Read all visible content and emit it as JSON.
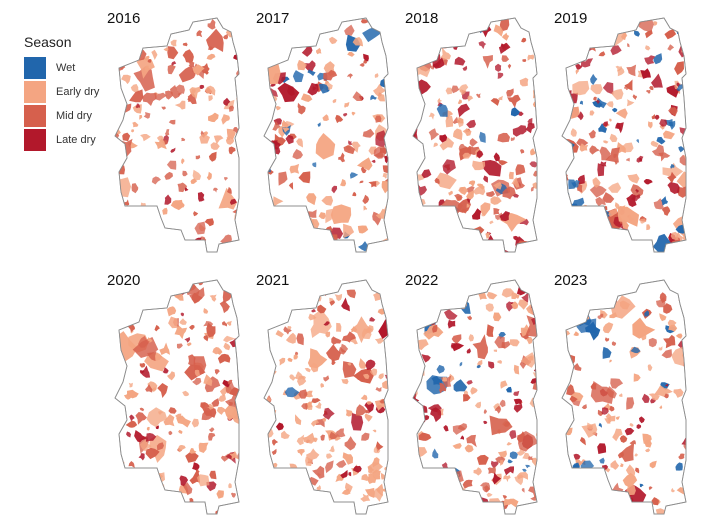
{
  "legend": {
    "title": "Season",
    "items": [
      {
        "label": "Wet",
        "color": "#2166ac"
      },
      {
        "label": "Early dry",
        "color": "#f4a582"
      },
      {
        "label": "Mid dry",
        "color": "#d6604d"
      },
      {
        "label": "Late dry",
        "color": "#b2182b"
      }
    ]
  },
  "panels": [
    {
      "year": "2016",
      "mix": [
        0.0,
        0.4,
        0.45,
        0.15
      ],
      "density": 0.55
    },
    {
      "year": "2017",
      "mix": [
        0.12,
        0.28,
        0.4,
        0.2
      ],
      "density": 0.6
    },
    {
      "year": "2018",
      "mix": [
        0.03,
        0.42,
        0.3,
        0.25
      ],
      "density": 0.65
    },
    {
      "year": "2019",
      "mix": [
        0.15,
        0.25,
        0.35,
        0.25
      ],
      "density": 0.85
    },
    {
      "year": "2020",
      "mix": [
        0.0,
        0.42,
        0.43,
        0.15
      ],
      "density": 0.62
    },
    {
      "year": "2021",
      "mix": [
        0.02,
        0.6,
        0.26,
        0.12
      ],
      "density": 0.7
    },
    {
      "year": "2022",
      "mix": [
        0.1,
        0.38,
        0.32,
        0.2
      ],
      "density": 0.8
    },
    {
      "year": "2023",
      "mix": [
        0.08,
        0.4,
        0.32,
        0.2
      ],
      "density": 0.52
    }
  ]
}
